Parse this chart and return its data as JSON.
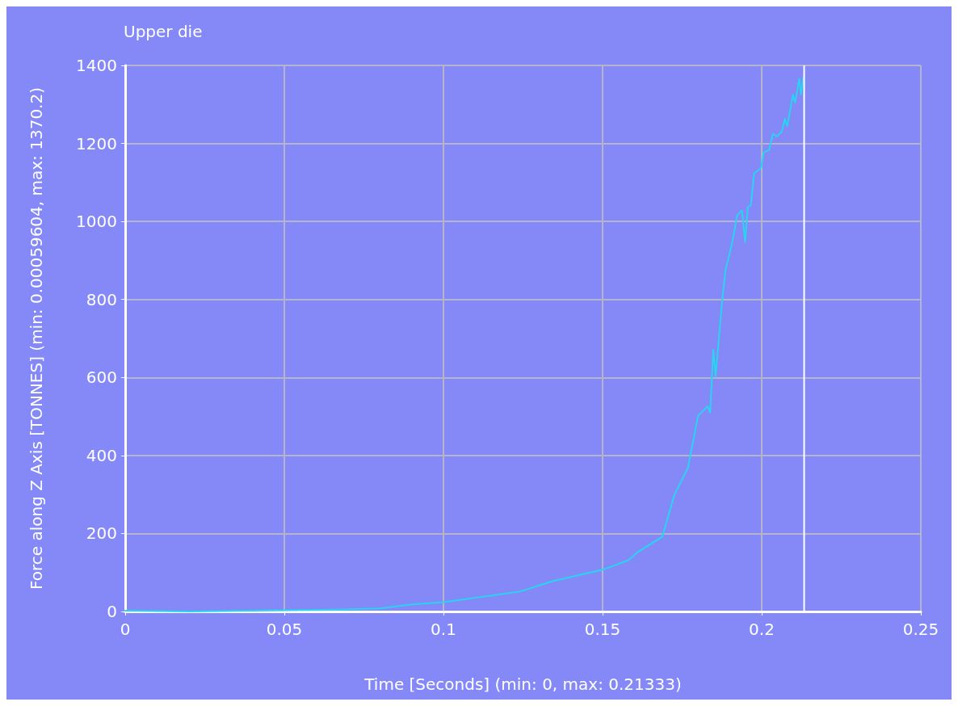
{
  "chart_data": {
    "type": "line",
    "title": "Upper die",
    "xlabel": "Time [Seconds] (min: 0, max: 0.21333)",
    "ylabel": "Force along Z Axis [TONNES] (min: 0.00059604, max: 1370.2)",
    "xlim": [
      0,
      0.25
    ],
    "xticks": [
      0,
      0.05,
      0.1,
      0.15,
      0.2,
      0.25
    ],
    "ylim": [
      0,
      1400
    ],
    "yticks": [
      0,
      200,
      400,
      600,
      800,
      1000,
      1200,
      1400
    ],
    "grid": true,
    "marker": "none",
    "line_style": "solid",
    "ref_lines": [
      {
        "axis": "x",
        "value": 0.21333,
        "color": "#ffffff"
      }
    ],
    "series": [
      {
        "color": "#29d4f0",
        "x": [
          0,
          0.02,
          0.05,
          0.063,
          0.08,
          0.09,
          0.1,
          0.124,
          0.134,
          0.15,
          0.158,
          0.161,
          0.1688,
          0.1726,
          0.1768,
          0.18,
          0.183,
          0.1838,
          0.1848,
          0.1855,
          0.1868,
          0.1876,
          0.1886,
          0.1906,
          0.1923,
          0.1938,
          0.1948,
          0.1956,
          0.1966,
          0.1976,
          0.1998,
          0.2006,
          0.2023,
          0.2035,
          0.2048,
          0.2063,
          0.2073,
          0.208,
          0.2088,
          0.2098,
          0.2105,
          0.2118,
          0.2123,
          0.2131
        ],
        "values": [
          2,
          0,
          3,
          4,
          8,
          18,
          24,
          51,
          77,
          107,
          131,
          152,
          192,
          300,
          368,
          502,
          526,
          510,
          672,
          603,
          724,
          799,
          874,
          941,
          1016,
          1028,
          947,
          1036,
          1042,
          1123,
          1137,
          1177,
          1183,
          1224,
          1218,
          1230,
          1264,
          1244,
          1279,
          1325,
          1305,
          1366,
          1325,
          1370
        ]
      }
    ]
  }
}
